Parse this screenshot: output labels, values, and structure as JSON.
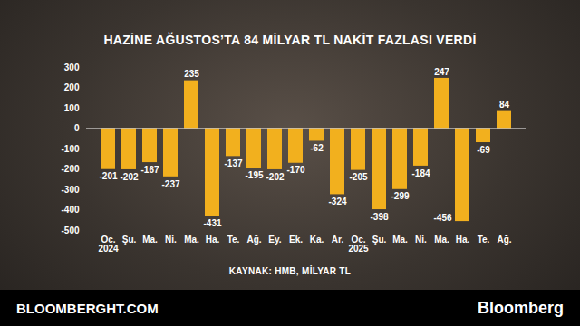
{
  "chart_data": {
    "type": "bar",
    "title": "HAZİNE AĞUSTOS’TA 84 MİLYAR TL NAKİT FAZLASI VERDİ",
    "source": "KAYNAK: HMB, MİLYAR TL",
    "footer_left": "BLOOMBERGHT.COM",
    "footer_right": "Bloomberg",
    "categories": [
      "Oc.\n2024",
      "Şu.",
      "Ma.",
      "Ni.",
      "Ma.",
      "Ha.",
      "Te.",
      "Ağ.",
      "Ey.",
      "Ek.",
      "Ka.",
      "Ar.",
      "Oc.\n2025",
      "Şu.",
      "Ma.",
      "Ni.",
      "Ma.",
      "Ha.",
      "Te.",
      "Ağ."
    ],
    "values": [
      -201,
      -202,
      -167,
      -237,
      235,
      -431,
      -137,
      -195,
      -202,
      -170,
      -62,
      -324,
      -205,
      -398,
      -299,
      -184,
      247,
      -456,
      -69,
      84
    ],
    "color": "#f2b01e",
    "ylim": [
      -500,
      300
    ],
    "yticks": [
      -500,
      -400,
      -300,
      -200,
      -100,
      0,
      100,
      200,
      300
    ],
    "grid": false,
    "data_labels": true
  }
}
